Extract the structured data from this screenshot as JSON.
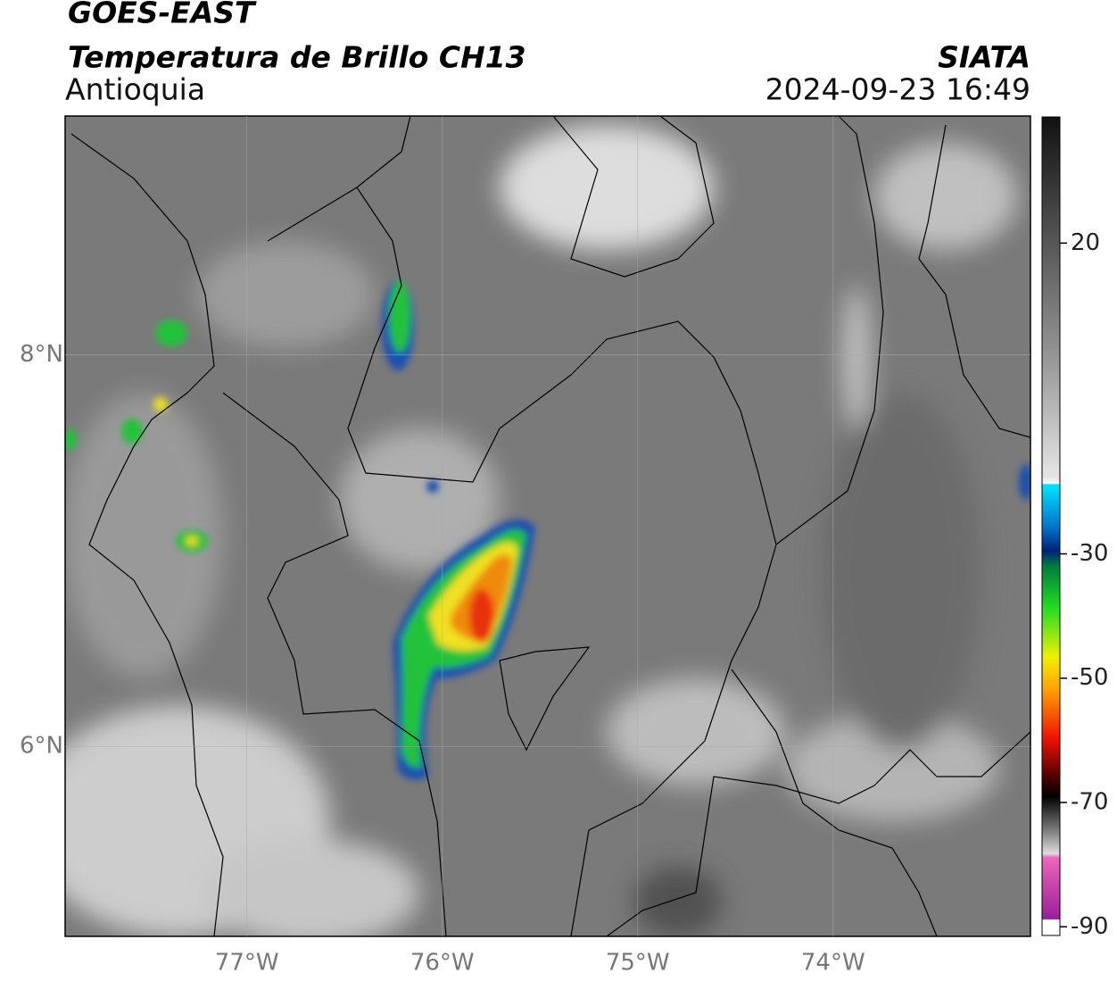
{
  "header": {
    "title": "GOES-EAST",
    "subtitle": "Temperatura de Brillo CH13",
    "region": "Antioquia",
    "source": "SIATA",
    "datetime": "2024-09-23 16:49"
  },
  "map": {
    "xlim": [
      -77.93,
      -72.99
    ],
    "ylim": [
      5.03,
      9.22
    ],
    "xticks": [
      {
        "value": -77,
        "label": "77°W"
      },
      {
        "value": -76,
        "label": "76°W"
      },
      {
        "value": -75,
        "label": "75°W"
      },
      {
        "value": -74,
        "label": "74°W"
      }
    ],
    "yticks": [
      {
        "value": 8,
        "label": "8°N"
      },
      {
        "value": 6,
        "label": "6°N"
      }
    ],
    "grid": true
  },
  "colorbar": {
    "lim": [
      -91.4,
      40.3
    ],
    "ticks": [
      20,
      -30,
      -50,
      -70,
      -90
    ]
  }
}
